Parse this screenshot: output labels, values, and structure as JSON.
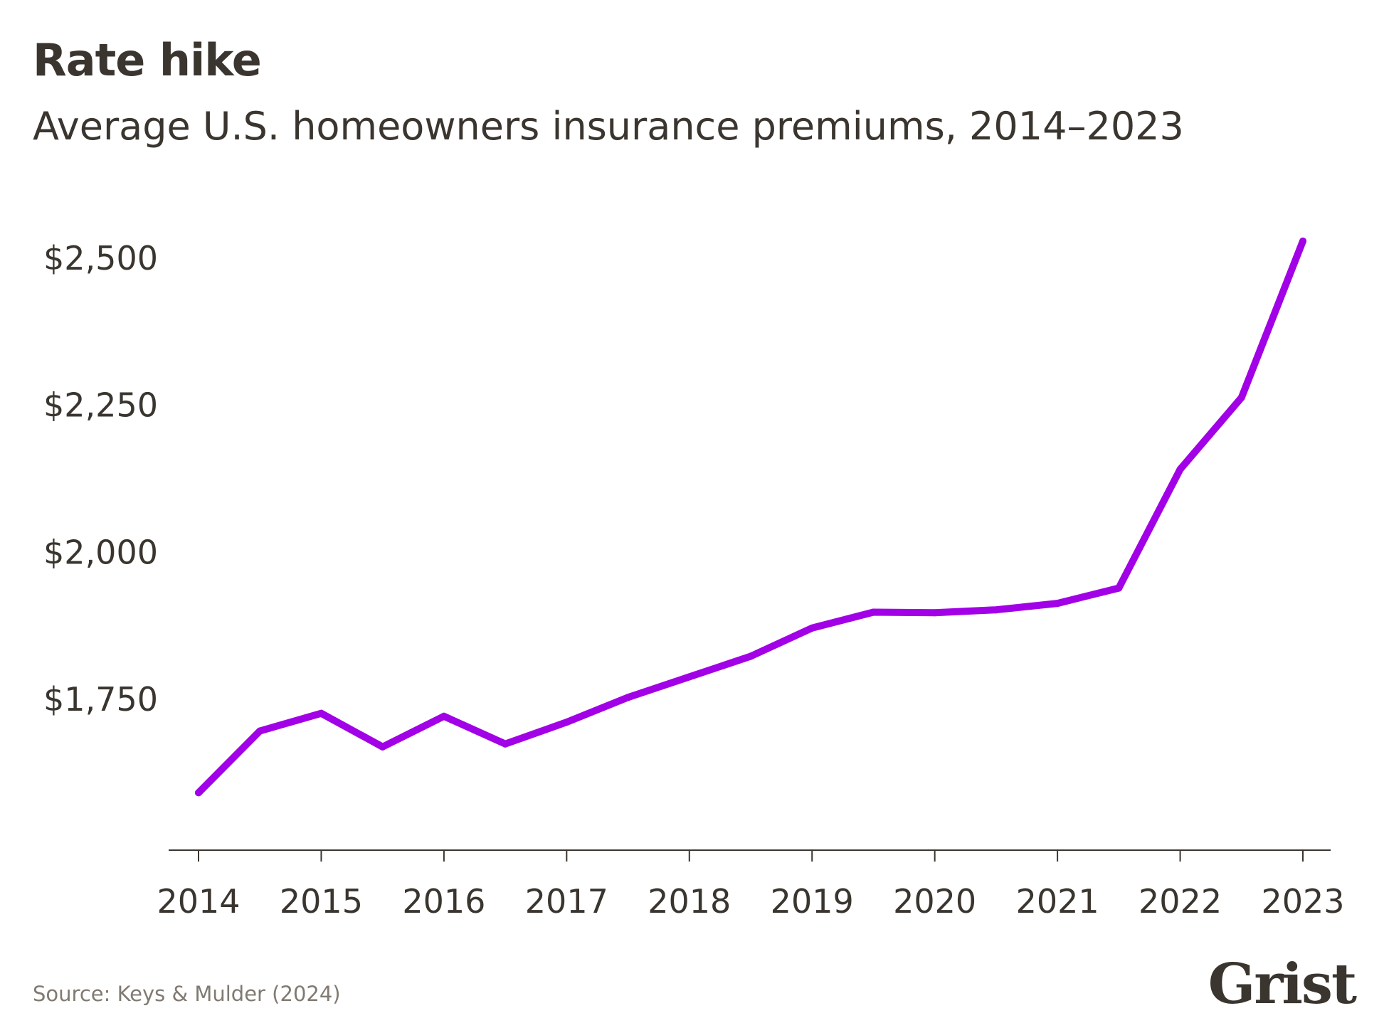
{
  "header": {
    "title": "Rate hike",
    "subtitle": "Average U.S. homeowners insurance premiums, 2014–2023"
  },
  "footer": {
    "source": "Source: Keys & Mulder (2024)",
    "logo": "Grist"
  },
  "colors": {
    "line": "#a200e6",
    "axis": "#3a352f",
    "text": "#3a352f",
    "source": "#807a72"
  },
  "chart_data": {
    "type": "line",
    "title": "Rate hike",
    "subtitle": "Average U.S. homeowners insurance premiums, 2014–2023",
    "xlabel": "",
    "ylabel": "",
    "x_tick_labels": [
      "2014",
      "2015",
      "2016",
      "2017",
      "2018",
      "2019",
      "2020",
      "2021",
      "2022",
      "2023"
    ],
    "y_ticks": [
      1750,
      2000,
      2250,
      2500
    ],
    "y_tick_labels": [
      "$1,750",
      "$2,000",
      "$2,250",
      "$2,500"
    ],
    "xlim": [
      2014,
      2023
    ],
    "ylim": [
      1500,
      2600
    ],
    "grid": false,
    "legend": "none",
    "series": [
      {
        "x": [
          2014,
          2014.5,
          2015,
          2015.5,
          2016,
          2016.5,
          2017,
          2017.5,
          2018,
          2018.5,
          2019,
          2019.5,
          2020,
          2020.5,
          2021,
          2021.5,
          2022,
          2022.5,
          2023
        ],
        "values": [
          1590,
          1695,
          1725,
          1668,
          1720,
          1673,
          1710,
          1752,
          1787,
          1822,
          1870,
          1897,
          1896,
          1901,
          1912,
          1938,
          2140,
          2262,
          2528
        ]
      }
    ]
  }
}
